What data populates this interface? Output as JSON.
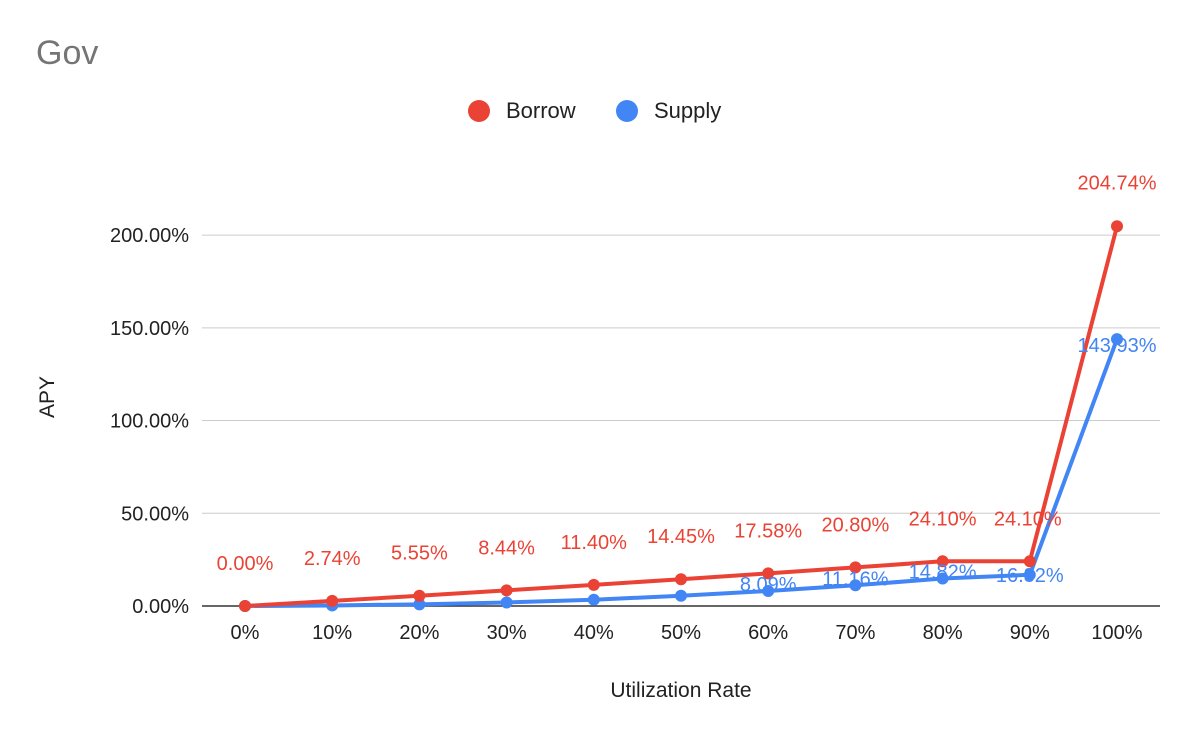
{
  "chart_data": {
    "type": "line",
    "title": "Gov",
    "xlabel": "Utilization Rate",
    "ylabel": "APY",
    "categories": [
      "0%",
      "10%",
      "20%",
      "30%",
      "40%",
      "50%",
      "60%",
      "70%",
      "80%",
      "90%",
      "100%"
    ],
    "y_ticks": [
      "0.00%",
      "50.00%",
      "100.00%",
      "150.00%",
      "200.00%"
    ],
    "ylim": [
      0,
      220
    ],
    "grid": true,
    "legend_position": "top",
    "series": [
      {
        "name": "Borrow",
        "color": "#ea4335",
        "values": [
          0.0,
          2.74,
          5.55,
          8.44,
          11.4,
          14.45,
          17.58,
          20.8,
          24.1,
          24.1,
          204.74
        ],
        "labels": [
          "0.00%",
          "2.74%",
          "5.55%",
          "8.44%",
          "11.40%",
          "14.45%",
          "17.58%",
          "20.80%",
          "24.10%",
          "24.10%",
          "204.74%"
        ]
      },
      {
        "name": "Supply",
        "color": "#4285f4",
        "values": [
          0.0,
          0.3,
          0.9,
          1.9,
          3.4,
          5.5,
          8.09,
          11.16,
          14.82,
          16.82,
          143.93
        ],
        "labels": [
          null,
          null,
          null,
          null,
          null,
          null,
          "8.09%",
          "11.16%",
          "14.82%",
          "16.82%",
          "143.93%"
        ]
      }
    ]
  }
}
